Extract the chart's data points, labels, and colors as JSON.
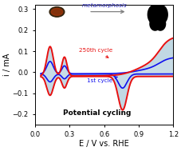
{
  "xlim": [
    0.0,
    1.2
  ],
  "ylim": [
    -0.25,
    0.32
  ],
  "xticks": [
    0.0,
    0.3,
    0.6,
    0.9,
    1.2
  ],
  "yticks": [
    -0.2,
    -0.1,
    0.0,
    0.1,
    0.2,
    0.3
  ],
  "xlabel": "E / V vs. RHE",
  "ylabel": "i / mA",
  "annotation_cycle250": "250th cycle",
  "annotation_cycle1": "1st cycle",
  "text_potential_cycling": "Potential cycling",
  "text_metamorphosis": "metamorphosis",
  "background_color": "#ffffff",
  "shade_color": "#a8c8d8",
  "shade_alpha": 0.55,
  "red_line_color": "#e81010",
  "blue_line_color": "#1010ee",
  "line_width": 1.4,
  "label_fontsize": 7,
  "tick_fontsize": 6
}
